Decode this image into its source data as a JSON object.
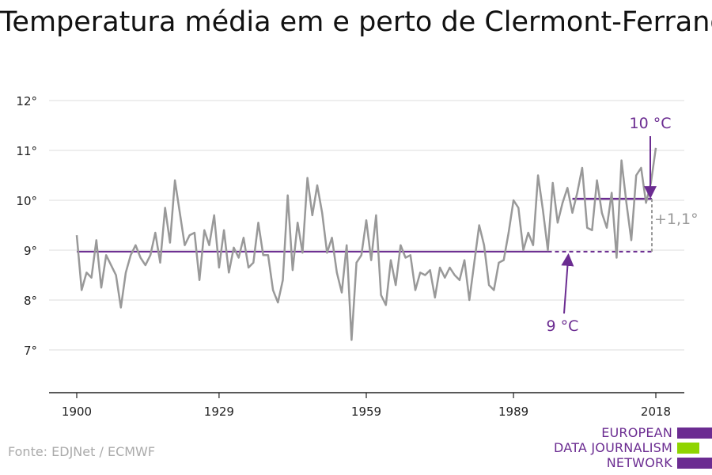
{
  "title": "Temperatura média em e perto de Clermont-Ferrand",
  "source": "Fonte: EDJNet / ECMWF",
  "logo": {
    "line1": "EUROPEAN",
    "line2": "DATA JOURNALISM",
    "line3": "NETWORK"
  },
  "colors": {
    "series": "#999999",
    "accent": "#6b2c91",
    "logo_green": "#8fd400",
    "grid": "#dddddd"
  },
  "chart_data": {
    "type": "line",
    "title": "Temperatura média em e perto de Clermont-Ferrand",
    "xlim": [
      1900,
      2018
    ],
    "ylim": [
      6,
      12
    ],
    "x_ticks": [
      1900,
      1929,
      1959,
      1989,
      2018
    ],
    "y_ticks": [
      {
        "value": 7,
        "label": "7°"
      },
      {
        "value": 8,
        "label": "8°"
      },
      {
        "value": 9,
        "label": "9°"
      },
      {
        "value": 10,
        "label": "10°"
      },
      {
        "value": 11,
        "label": "11°"
      },
      {
        "value": 12,
        "label": "12°"
      }
    ],
    "grid": true,
    "series": [
      {
        "x": [
          1900,
          1901,
          1902,
          1903,
          1904,
          1905,
          1906,
          1907,
          1908,
          1909,
          1910,
          1911,
          1912,
          1913,
          1914,
          1915,
          1916,
          1917,
          1918,
          1919,
          1920,
          1921,
          1922,
          1923,
          1924,
          1925,
          1926,
          1927,
          1928,
          1929,
          1930,
          1931,
          1932,
          1933,
          1934,
          1935,
          1936,
          1937,
          1938,
          1939,
          1940,
          1941,
          1942,
          1943,
          1944,
          1945,
          1946,
          1947,
          1948,
          1949,
          1950,
          1951,
          1952,
          1953,
          1954,
          1955,
          1956,
          1957,
          1958,
          1959,
          1960,
          1961,
          1962,
          1963,
          1964,
          1965,
          1966,
          1967,
          1968,
          1969,
          1970,
          1971,
          1972,
          1973,
          1974,
          1975,
          1976,
          1977,
          1978,
          1979,
          1980,
          1981,
          1982,
          1983,
          1984,
          1985,
          1986,
          1987,
          1988,
          1989,
          1990,
          1991,
          1992,
          1993,
          1994,
          1995,
          1996,
          1997,
          1998,
          1999,
          2000,
          2001,
          2002,
          2003,
          2004,
          2005,
          2006,
          2007,
          2008,
          2009,
          2010,
          2011,
          2012,
          2013,
          2014,
          2015,
          2016,
          2017,
          2018
        ],
        "values": [
          9.3,
          8.2,
          8.55,
          8.45,
          9.2,
          8.25,
          8.9,
          8.7,
          8.5,
          7.85,
          8.55,
          8.9,
          9.1,
          8.85,
          8.7,
          8.9,
          9.35,
          8.75,
          9.85,
          9.15,
          10.4,
          9.75,
          9.1,
          9.3,
          9.35,
          8.4,
          9.4,
          9.1,
          9.7,
          8.65,
          9.4,
          8.55,
          9.05,
          8.85,
          9.25,
          8.65,
          8.75,
          9.55,
          8.9,
          8.9,
          8.2,
          7.95,
          8.4,
          10.1,
          8.6,
          9.55,
          8.95,
          10.45,
          9.7,
          10.3,
          9.75,
          8.95,
          9.25,
          8.55,
          8.15,
          9.1,
          7.2,
          8.75,
          8.9,
          9.6,
          8.8,
          9.7,
          8.1,
          7.9,
          8.8,
          8.3,
          9.1,
          8.85,
          8.9,
          8.2,
          8.55,
          8.5,
          8.6,
          8.05,
          8.65,
          8.45,
          8.65,
          8.5,
          8.4,
          8.8,
          8.0,
          8.75,
          9.5,
          9.1,
          8.3,
          8.2,
          8.75,
          8.8,
          9.35,
          10.0,
          9.85,
          9.0,
          9.35,
          9.1,
          10.5,
          9.8,
          9.0,
          10.35,
          9.55,
          9.95,
          10.25,
          9.75,
          10.15,
          10.65,
          9.45,
          9.4,
          10.4,
          9.75,
          9.45,
          10.15,
          8.85,
          10.8,
          9.95,
          9.2,
          10.5,
          10.65,
          9.95,
          10.35,
          11.05
        ]
      }
    ],
    "annotations": {
      "baseline_label": "9 °C",
      "baseline_value": 8.97,
      "baseline_range": [
        1900,
        2018
      ],
      "recent_label": "10 °C",
      "recent_value": 10.03,
      "recent_range": [
        2001,
        2018
      ],
      "difference_label": "+1,1°"
    }
  }
}
